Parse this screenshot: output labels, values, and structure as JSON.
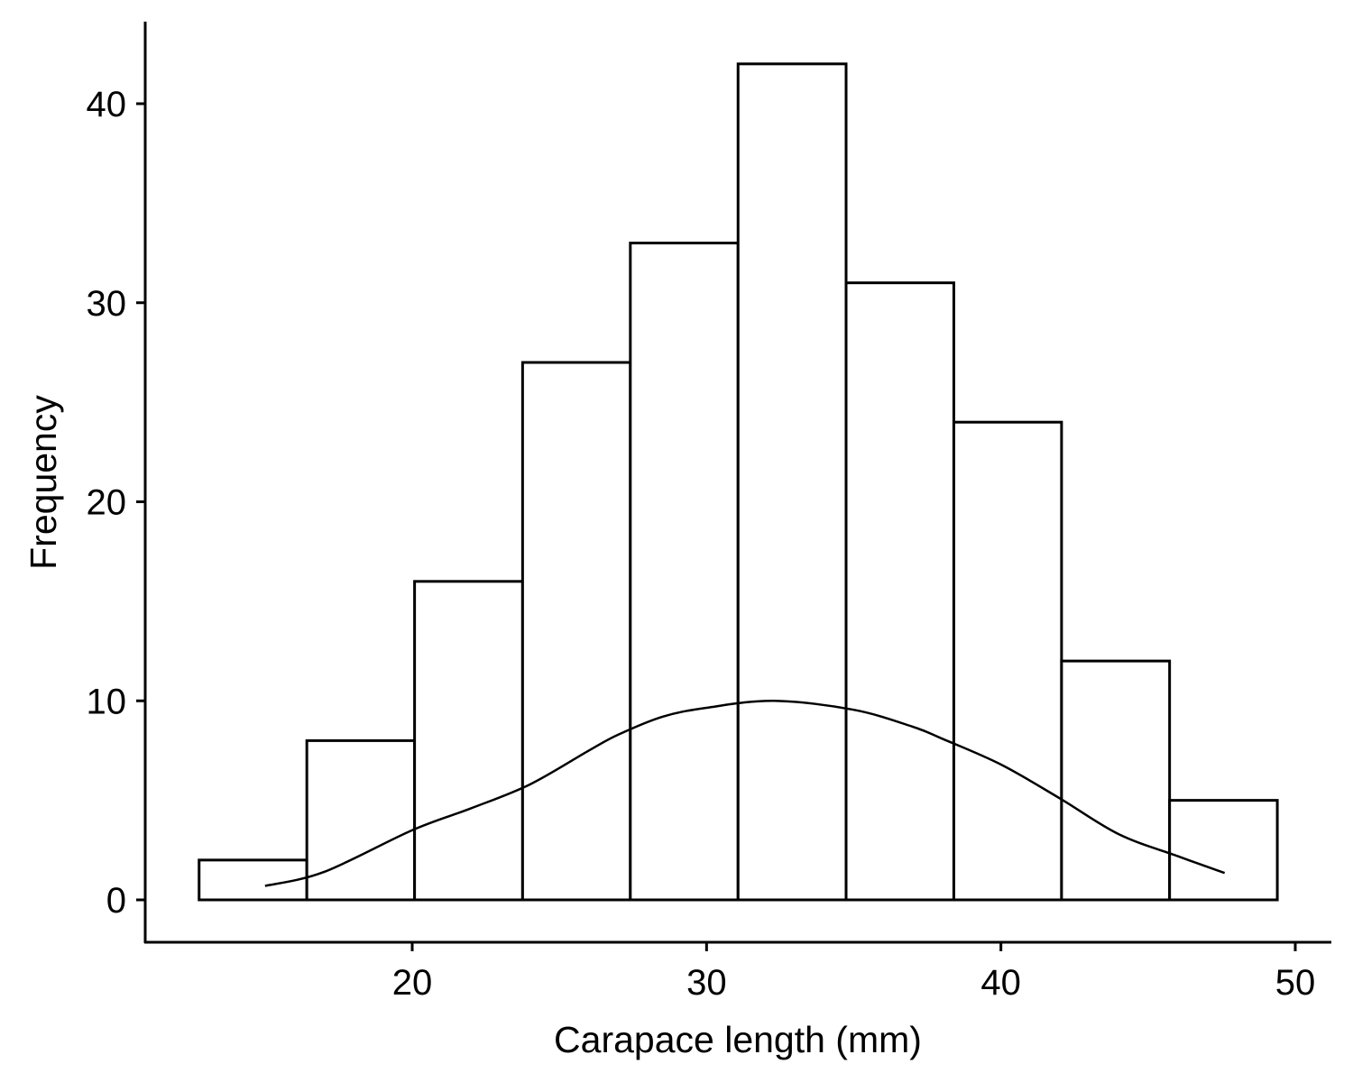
{
  "chart_data": {
    "type": "bar",
    "subtype": "histogram",
    "title": "",
    "xlabel": "Carapace length (mm)",
    "ylabel": "Frequency",
    "xlim": [
      11.3,
      51.1
    ],
    "ylim": [
      -2.1,
      43.9
    ],
    "xticks": [
      20,
      30,
      40,
      50
    ],
    "yticks": [
      0,
      10,
      20,
      30,
      40
    ],
    "grid": false,
    "bin_edges": [
      12.76,
      16.42,
      20.08,
      23.75,
      27.41,
      31.07,
      34.74,
      38.4,
      42.06,
      45.73,
      49.39
    ],
    "values": [
      2,
      8,
      16,
      27,
      33,
      42,
      31,
      24,
      12,
      5
    ],
    "bar_fill": "#ffffff",
    "bar_stroke": "#000000",
    "density_curve": {
      "x": [
        15.0,
        17.0,
        20.0,
        22.0,
        24.0,
        26.0,
        27.0,
        28.5,
        30.0,
        32.3,
        35.0,
        37.0,
        38.0,
        40.0,
        42.0,
        44.0,
        46.0,
        47.6
      ],
      "y": [
        0.7,
        1.4,
        3.5,
        4.6,
        5.8,
        7.5,
        8.3,
        9.2,
        9.65,
        10.0,
        9.55,
        8.7,
        8.1,
        6.8,
        5.1,
        3.3,
        2.2,
        1.35
      ]
    }
  }
}
